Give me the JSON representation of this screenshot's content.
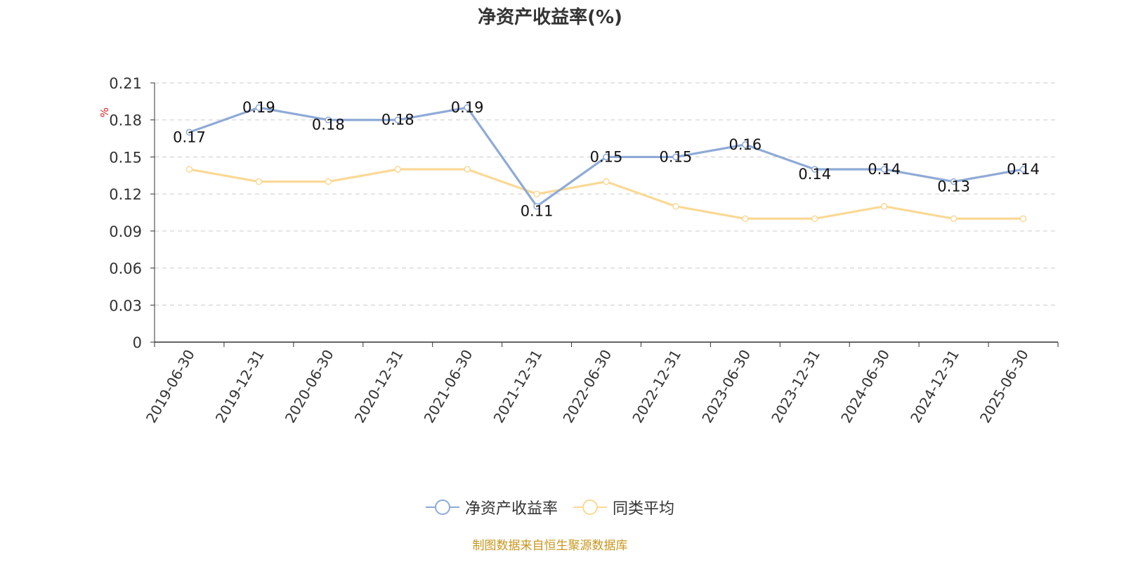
{
  "chart_data": {
    "type": "line",
    "title": "净资产收益率(%)",
    "ylabel": "%",
    "xlabel": "",
    "ylim": [
      0,
      0.21
    ],
    "yticks": [
      "0",
      "0.03",
      "0.06",
      "0.09",
      "0.12",
      "0.15",
      "0.18",
      "0.21"
    ],
    "grid": true,
    "legend_position": "bottom-center",
    "categories": [
      "2019-06-30",
      "2019-12-31",
      "2020-06-30",
      "2020-12-31",
      "2021-06-30",
      "2021-12-31",
      "2022-06-30",
      "2022-12-31",
      "2023-06-30",
      "2023-12-31",
      "2024-06-30",
      "2024-12-31",
      "2025-06-30"
    ],
    "series": [
      {
        "name": "净资产收益率",
        "color": "#8eaad6",
        "values": [
          0.17,
          0.19,
          0.18,
          0.18,
          0.19,
          0.11,
          0.15,
          0.15,
          0.16,
          0.14,
          0.14,
          0.13,
          0.14
        ],
        "data_labels": [
          "0.17",
          "0.19",
          "0.18",
          "0.18",
          "0.19",
          "0.11",
          "0.15",
          "0.15",
          "0.16",
          "0.14",
          "0.14",
          "0.13",
          "0.14"
        ]
      },
      {
        "name": "同类平均",
        "color": "#fad996",
        "values": [
          0.14,
          0.13,
          0.13,
          0.14,
          0.14,
          0.12,
          0.13,
          0.11,
          0.1,
          0.1,
          0.11,
          0.1,
          0.1
        ]
      }
    ]
  },
  "source_note": "制图数据来自恒生聚源数据库"
}
